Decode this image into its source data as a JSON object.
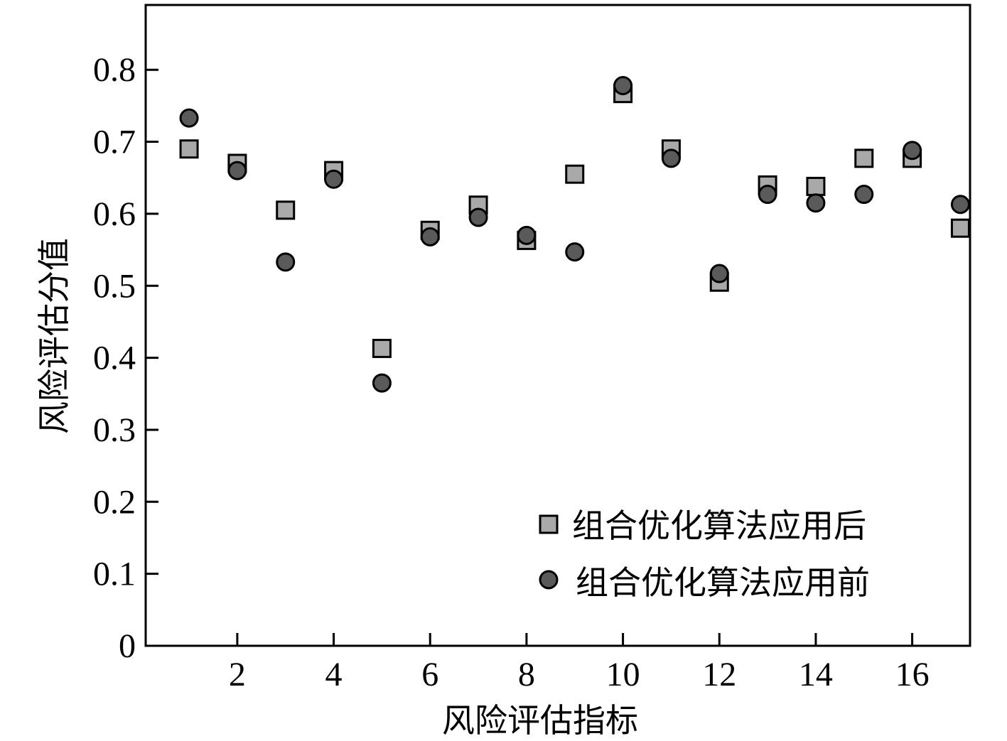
{
  "chart_data": {
    "type": "scatter",
    "xlabel": "风险评估指标",
    "ylabel": "风险评估分值",
    "xlim": [
      0.1,
      17.2
    ],
    "ylim": [
      0,
      0.89
    ],
    "x_ticks": [
      2,
      4,
      6,
      8,
      10,
      12,
      14,
      16
    ],
    "y_ticks": [
      0,
      0.1,
      0.2,
      0.3,
      0.4,
      0.5,
      0.6,
      0.7,
      0.8
    ],
    "y_tick_labels": [
      "0",
      "0.1",
      "0.2",
      "0.3",
      "0.4",
      "0.5",
      "0.6",
      "0.7",
      "0.8"
    ],
    "x": [
      1,
      2,
      3,
      4,
      5,
      6,
      7,
      8,
      9,
      10,
      11,
      12,
      13,
      14,
      15,
      16,
      17
    ],
    "series": [
      {
        "name": "组合优化算法应用后",
        "marker": "square",
        "color": "#a9a9a9",
        "values": [
          0.69,
          0.67,
          0.605,
          0.66,
          0.413,
          0.577,
          0.612,
          0.563,
          0.655,
          0.767,
          0.69,
          0.505,
          0.64,
          0.638,
          0.677,
          0.677,
          0.58
        ]
      },
      {
        "name": "组合优化算法应用前",
        "marker": "circle",
        "color": "#5a5a5a",
        "values": [
          0.733,
          0.66,
          0.533,
          0.648,
          0.365,
          0.568,
          0.595,
          0.57,
          0.547,
          0.778,
          0.677,
          0.517,
          0.627,
          0.615,
          0.627,
          0.688,
          0.613
        ]
      }
    ],
    "legend": "bottom-right",
    "grid": false
  }
}
